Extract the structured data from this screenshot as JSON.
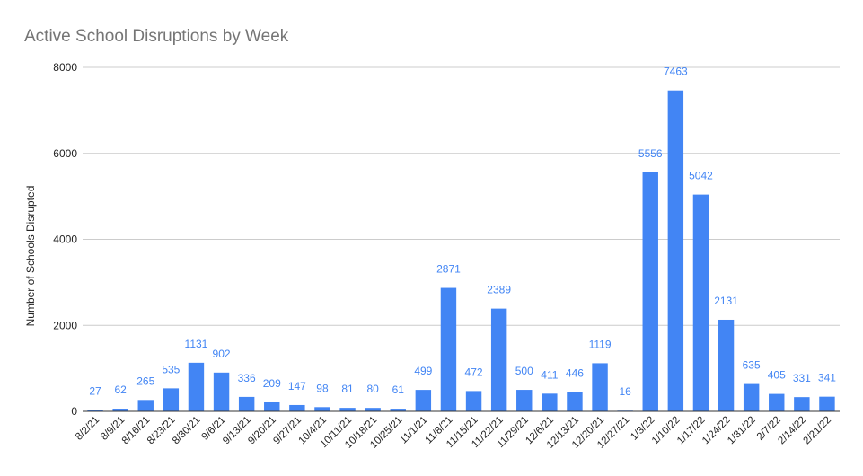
{
  "chart_data": {
    "type": "bar",
    "title": "Active School Disruptions by Week",
    "xlabel": "",
    "ylabel": "Number of Schools Disrupted",
    "ylim": [
      0,
      8000
    ],
    "yticks": [
      0,
      2000,
      4000,
      6000,
      8000
    ],
    "grid": true,
    "legend": "none",
    "bar_color": "#4285f4",
    "label_color": "#4285f4",
    "categories": [
      "8/2/21",
      "8/9/21",
      "8/16/21",
      "8/23/21",
      "8/30/21",
      "9/6/21",
      "9/13/21",
      "9/20/21",
      "9/27/21",
      "10/4/21",
      "10/11/21",
      "10/18/21",
      "10/25/21",
      "11/1/21",
      "11/8/21",
      "11/15/21",
      "11/22/21",
      "11/29/21",
      "12/6/21",
      "12/13/21",
      "12/20/21",
      "12/27/21",
      "1/3/22",
      "1/10/22",
      "1/17/22",
      "1/24/22",
      "1/31/22",
      "2/7/22",
      "2/14/22",
      "2/21/22"
    ],
    "values": [
      27,
      62,
      265,
      535,
      1131,
      902,
      336,
      209,
      147,
      98,
      81,
      80,
      61,
      499,
      2871,
      472,
      2389,
      500,
      411,
      446,
      1119,
      16,
      5556,
      7463,
      5042,
      2131,
      635,
      405,
      331,
      341
    ]
  }
}
